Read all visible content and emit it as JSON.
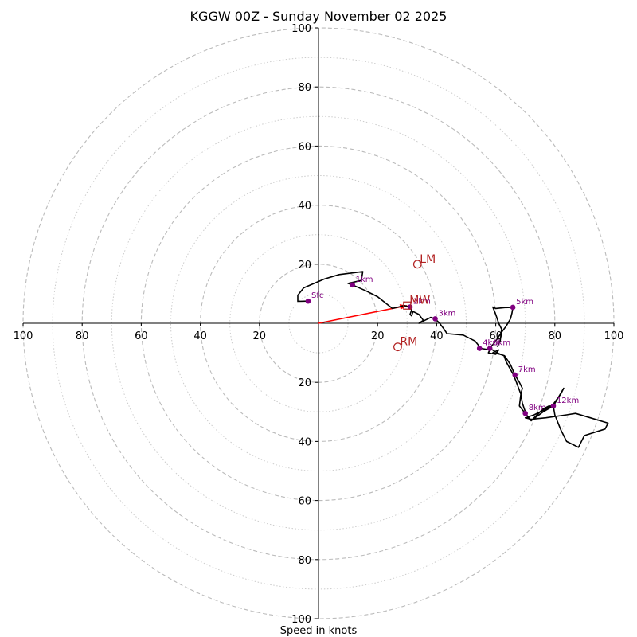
{
  "chart_data": {
    "type": "hodograph",
    "title": "KGGW 00Z - Sunday November 02 2025",
    "xlabel": "Speed in knots",
    "units": "knots",
    "axis_range": [
      -100,
      100
    ],
    "ring_major": [
      20,
      40,
      60,
      80,
      100
    ],
    "ring_minor": [
      10,
      30,
      50,
      70,
      90
    ],
    "x_tick_labels": [
      "100",
      "80",
      "60",
      "40",
      "20",
      "20",
      "40",
      "60",
      "80",
      "100"
    ],
    "y_tick_labels": [
      "100",
      "80",
      "60",
      "40",
      "20",
      "20",
      "40",
      "60",
      "80",
      "100"
    ],
    "x_tick_values": [
      -100,
      -80,
      -60,
      -40,
      -20,
      20,
      40,
      60,
      80,
      100
    ],
    "y_tick_values": [
      100,
      80,
      60,
      40,
      20,
      -20,
      -40,
      -60,
      -80,
      -100
    ],
    "trace": [
      [
        -3.5,
        7.5
      ],
      [
        -7,
        7.4
      ],
      [
        -7,
        9.5
      ],
      [
        -5,
        12
      ],
      [
        2,
        15
      ],
      [
        7,
        16.5
      ],
      [
        15,
        17.5
      ],
      [
        14.5,
        14.5
      ],
      [
        10,
        13.5
      ],
      [
        11.5,
        13
      ],
      [
        16,
        11
      ],
      [
        20,
        9
      ],
      [
        25,
        5
      ],
      [
        27,
        5.5
      ],
      [
        29,
        6
      ],
      [
        31,
        5.5
      ],
      [
        31.5,
        4.5
      ],
      [
        31,
        3
      ],
      [
        31.5,
        2.5
      ],
      [
        32,
        4
      ],
      [
        34,
        3
      ],
      [
        35.5,
        1
      ],
      [
        34,
        0
      ],
      [
        36,
        1
      ],
      [
        38,
        2
      ],
      [
        39.5,
        1.5
      ],
      [
        41,
        0
      ],
      [
        42.5,
        -2
      ],
      [
        43.5,
        -3.5
      ],
      [
        49,
        -4
      ],
      [
        53,
        -6
      ],
      [
        55,
        -8.5
      ],
      [
        58,
        -9
      ],
      [
        57.5,
        -10
      ],
      [
        60,
        -10.5
      ],
      [
        61,
        -9
      ],
      [
        59,
        -10
      ],
      [
        61.5,
        -10.5
      ],
      [
        63,
        -11
      ],
      [
        65,
        -14
      ],
      [
        66.5,
        -17.5
      ],
      [
        68,
        -20
      ],
      [
        69,
        -22
      ],
      [
        68.5,
        -24
      ],
      [
        69,
        -27
      ],
      [
        70,
        -30
      ],
      [
        71,
        -32
      ],
      [
        72,
        -33
      ],
      [
        74,
        -31
      ],
      [
        76,
        -29
      ],
      [
        78,
        -28
      ],
      [
        79.5,
        -28
      ],
      [
        83,
        -22
      ],
      [
        82,
        -24
      ],
      [
        79,
        -28
      ],
      [
        73,
        -31
      ],
      [
        70,
        -32
      ],
      [
        72,
        -32.5
      ],
      [
        77,
        -32
      ],
      [
        84,
        -31
      ],
      [
        87,
        -30.5
      ],
      [
        92,
        -32
      ],
      [
        98,
        -33.8
      ],
      [
        97,
        -35.8
      ],
      [
        90,
        -38
      ],
      [
        88,
        -42
      ],
      [
        86,
        -41
      ],
      [
        84,
        -40
      ],
      [
        82,
        -36
      ],
      [
        80,
        -31
      ],
      [
        79.5,
        -28
      ],
      [
        76,
        -30
      ],
      [
        72,
        -33
      ],
      [
        70,
        -30.5
      ],
      [
        68,
        -28
      ],
      [
        68.5,
        -24
      ],
      [
        67,
        -20
      ],
      [
        66,
        -17.5
      ],
      [
        63.5,
        -13
      ],
      [
        62.8,
        -11
      ],
      [
        60.5,
        -10
      ],
      [
        58,
        -8.5
      ],
      [
        60,
        -6
      ],
      [
        62,
        -3
      ],
      [
        63.5,
        -1
      ],
      [
        65,
        1.5
      ],
      [
        65.5,
        3.5
      ],
      [
        65.8,
        5.4
      ],
      [
        63,
        5.3
      ],
      [
        60,
        5
      ],
      [
        59,
        5.5
      ],
      [
        60,
        3
      ],
      [
        61,
        0
      ],
      [
        62,
        -2
      ],
      [
        61.5,
        -6
      ],
      [
        60.5,
        -8
      ]
    ],
    "height_markers": [
      {
        "label": "Sfc",
        "u": -3.5,
        "v": 7.5
      },
      {
        "label": "1km",
        "u": 11.5,
        "v": 13
      },
      {
        "label": "2km",
        "u": 31,
        "v": 5.5
      },
      {
        "label": "3km",
        "u": 39.5,
        "v": 1.5
      },
      {
        "label": "4km",
        "u": 54.5,
        "v": -8.5
      },
      {
        "label": "6km",
        "u": 58,
        "v": -8.5
      },
      {
        "label": "5km",
        "u": 65.8,
        "v": 5.4
      },
      {
        "label": "7km",
        "u": 66.5,
        "v": -17.5
      },
      {
        "label": "8km",
        "u": 70,
        "v": -30.5
      },
      {
        "label": "12km",
        "u": 79.5,
        "v": -28
      }
    ],
    "motion_vectors": [
      {
        "label": "LM",
        "u": 33.5,
        "v": 20
      },
      {
        "label": "MW",
        "u": 30,
        "v": 6
      },
      {
        "label": "RM",
        "u": 26.8,
        "v": -8
      }
    ],
    "mean_wind_arrow": {
      "u": 30,
      "v": 6
    }
  },
  "colors": {
    "trace": "#000000",
    "marker": "#800080",
    "motion": "#b22222",
    "arrow": "#ff0000",
    "grid": "#bbbbbb"
  }
}
